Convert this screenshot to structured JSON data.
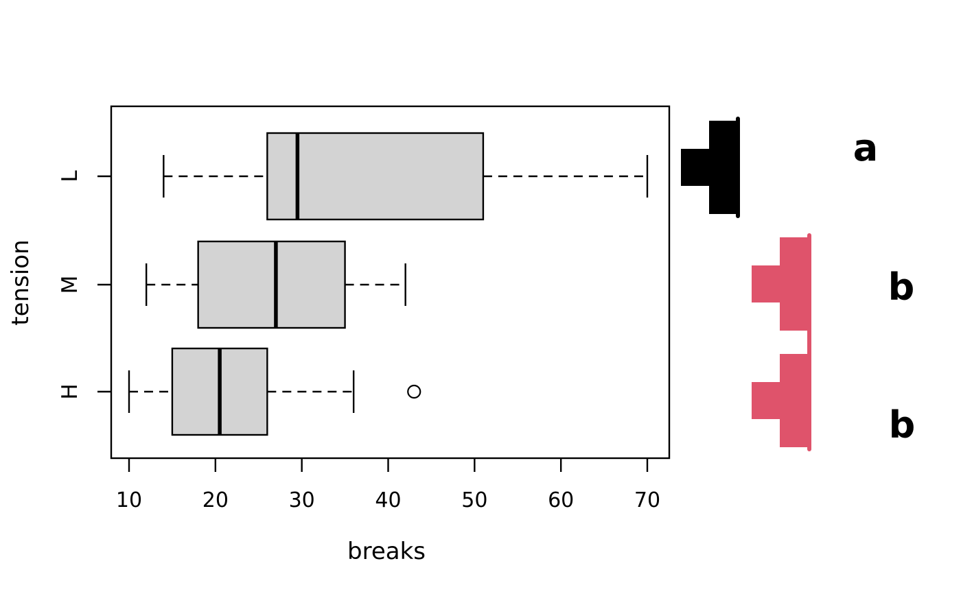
{
  "figure": {
    "background": "#ffffff"
  },
  "chart_data": {
    "type": "boxplot",
    "orientation": "horizontal",
    "title": "",
    "xlabel": "breaks",
    "ylabel": "tension",
    "xlim": [
      7.9,
      72.6
    ],
    "xticks": [
      "10",
      "20",
      "30",
      "40",
      "50",
      "60",
      "70"
    ],
    "categories": [
      "L",
      "M",
      "H"
    ],
    "grid": "off",
    "box_fill": "#d3d3d3",
    "box_stroke": "#000000",
    "boxes": [
      {
        "category": "L",
        "whisker_low": 14,
        "q1": 26,
        "median": 29.5,
        "q3": 51,
        "whisker_high": 70,
        "outliers": []
      },
      {
        "category": "M",
        "whisker_low": 12,
        "q1": 18,
        "median": 27,
        "q3": 35,
        "whisker_high": 42,
        "outliers": []
      },
      {
        "category": "H",
        "whisker_low": 10,
        "q1": 15,
        "median": 20.5,
        "q3": 26,
        "whisker_high": 36,
        "outliers": [
          43
        ]
      }
    ],
    "cld": {
      "description": "compact letter display: T-shaped group glyphs and significance letters",
      "groups": [
        {
          "letter": "a",
          "members": [
            "L"
          ],
          "color": "#000000"
        },
        {
          "letter": "b",
          "members": [
            "M",
            "H"
          ],
          "color": "#df536b"
        }
      ],
      "letters": [
        {
          "label": "a",
          "row": "L",
          "color": "#000000"
        },
        {
          "label": "b",
          "row": "M",
          "color": "#df536b"
        },
        {
          "label": "b",
          "row": "H",
          "color": "#df536b"
        }
      ]
    }
  }
}
